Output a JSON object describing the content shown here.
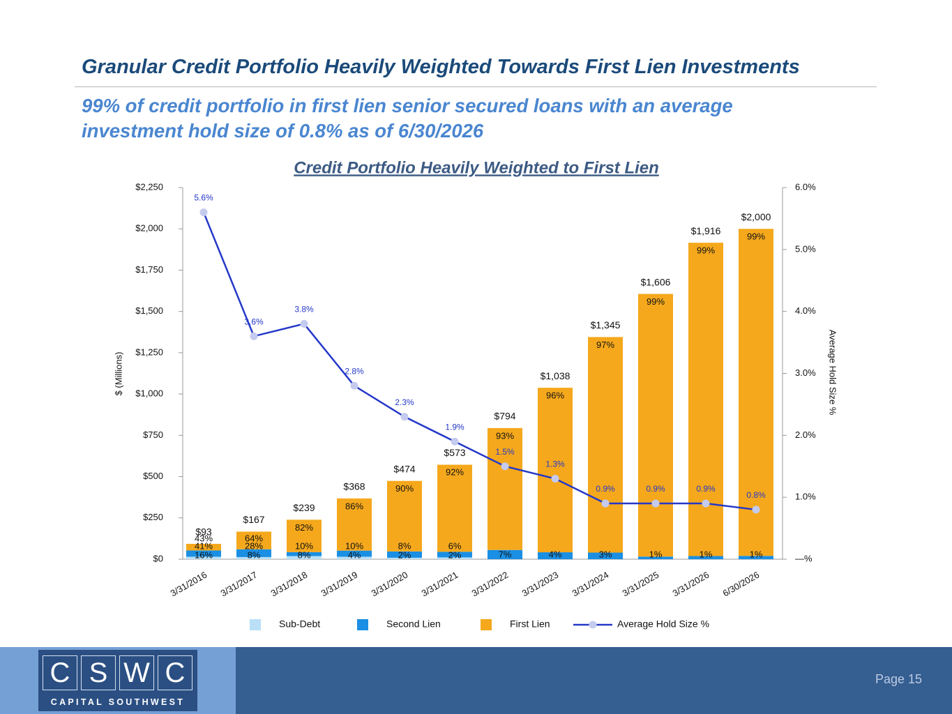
{
  "slide": {
    "title": "Granular Credit Portfolio Heavily Weighted Towards First Lien Investments",
    "subtitle": "99% of credit portfolio in first lien senior secured loans with an average investment hold size of 0.8% as of 6/30/2026",
    "logo_letters": [
      "C",
      "S",
      "W",
      "C"
    ],
    "logo_text": "CAPITAL SOUTHWEST",
    "page": "Page 15"
  },
  "chart_data": {
    "type": "bar",
    "stacked": true,
    "title": "Credit Portfolio Heavily Weighted to First Lien",
    "y_label": "$ (Millions)",
    "y2_label": "Average Hold Size %",
    "categories": [
      "3/31/2016",
      "3/31/2017",
      "3/31/2018",
      "3/31/2019",
      "3/31/2020",
      "3/31/2021",
      "3/31/2022",
      "3/31/2023",
      "3/31/2024",
      "3/31/2025",
      "3/31/2026",
      "6/30/2026"
    ],
    "totals": [
      93,
      167,
      239,
      368,
      474,
      573,
      794,
      1038,
      1345,
      1606,
      1916,
      2000
    ],
    "total_labels": [
      "$93",
      "$167",
      "$239",
      "$368",
      "$474",
      "$573",
      "$794",
      "$1,038",
      "$1,345",
      "$1,606",
      "$1,916",
      "$2,000"
    ],
    "series": [
      {
        "name": "Sub-Debt",
        "color": "#b9e0f7",
        "values": [
          15,
          13,
          19,
          15,
          9,
          11,
          null,
          null,
          null,
          null,
          null,
          null
        ],
        "share_labels": [
          "16%",
          "8%",
          "8%",
          "4%",
          "2%",
          "2%",
          null,
          null,
          null,
          null,
          null,
          null
        ]
      },
      {
        "name": "Second Lien",
        "color": "#1a8fe3",
        "values": [
          38,
          47,
          24,
          37,
          38,
          34,
          56,
          42,
          40,
          16,
          19,
          20
        ],
        "share_labels": [
          "41%",
          "28%",
          "10%",
          "10%",
          "8%",
          "6%",
          "7%",
          "4%",
          "3%",
          "1%",
          "1%",
          "1%"
        ]
      },
      {
        "name": "First Lien",
        "color": "#f5a81c",
        "values": [
          40,
          107,
          196,
          316,
          427,
          527,
          738,
          996,
          1305,
          1590,
          1897,
          1980
        ],
        "share_labels": [
          "43%",
          "64%",
          "82%",
          "86%",
          "90%",
          "92%",
          "93%",
          "96%",
          "97%",
          "99%",
          "99%",
          "99%"
        ]
      },
      {
        "name": "Average Hold Size %",
        "type": "line",
        "axis": "y2",
        "color": "#2438c8",
        "marker_color": "#c5cbee",
        "values": [
          5.6,
          3.6,
          3.8,
          2.8,
          2.3,
          1.9,
          1.5,
          1.3,
          0.9,
          0.9,
          0.9,
          0.8
        ],
        "value_labels": [
          "5.6%",
          "3.6%",
          "3.8%",
          "2.8%",
          "2.3%",
          "1.9%",
          "1.5%",
          "1.3%",
          "0.9%",
          "0.9%",
          "0.9%",
          "0.8%"
        ]
      }
    ],
    "ylim": [
      0,
      2250
    ],
    "yticks": [
      {
        "value": 0,
        "label": "$0"
      },
      {
        "value": 250,
        "label": "$250"
      },
      {
        "value": 500,
        "label": "$500"
      },
      {
        "value": 750,
        "label": "$750"
      },
      {
        "value": 1000,
        "label": "$1,000"
      },
      {
        "value": 1250,
        "label": "$1,250"
      },
      {
        "value": 1500,
        "label": "$1,500"
      },
      {
        "value": 1750,
        "label": "$1,750"
      },
      {
        "value": 2000,
        "label": "$2,000"
      },
      {
        "value": 2250,
        "label": "$2,250"
      }
    ],
    "y2lim": [
      0,
      6
    ],
    "y2ticks": [
      {
        "value": 0,
        "label": "—%"
      },
      {
        "value": 1,
        "label": "1.0%"
      },
      {
        "value": 2,
        "label": "2.0%"
      },
      {
        "value": 3,
        "label": "3.0%"
      },
      {
        "value": 4,
        "label": "4.0%"
      },
      {
        "value": 5,
        "label": "5.0%"
      },
      {
        "value": 6,
        "label": "6.0%"
      }
    ],
    "grid": false,
    "legend": "bottom"
  }
}
